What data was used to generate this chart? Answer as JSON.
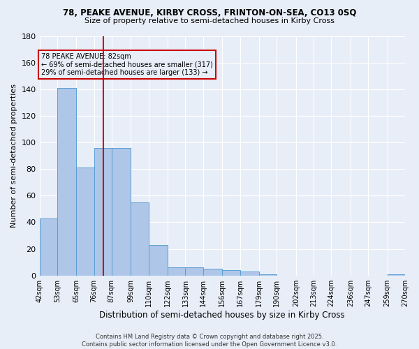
{
  "title1": "78, PEAKE AVENUE, KIRBY CROSS, FRINTON-ON-SEA, CO13 0SQ",
  "title2": "Size of property relative to semi-detached houses in Kirby Cross",
  "xlabel": "Distribution of semi-detached houses by size in Kirby Cross",
  "ylabel": "Number of semi-detached properties",
  "bar_values": [
    43,
    141,
    81,
    96,
    96,
    55,
    23,
    6,
    6,
    5,
    4,
    3,
    1,
    0,
    0,
    0,
    0,
    0,
    0,
    1
  ],
  "bin_labels": [
    "42sqm",
    "53sqm",
    "65sqm",
    "76sqm",
    "87sqm",
    "99sqm",
    "110sqm",
    "122sqm",
    "133sqm",
    "144sqm",
    "156sqm",
    "167sqm",
    "179sqm",
    "190sqm",
    "202sqm",
    "213sqm",
    "224sqm",
    "236sqm",
    "247sqm",
    "259sqm",
    "270sqm"
  ],
  "bar_color": "#aec6e8",
  "bar_edge_color": "#5a9fd4",
  "vline_x": 82,
  "vline_color": "#cc0000",
  "annotation_title": "78 PEAKE AVENUE: 82sqm",
  "annotation_line1": "← 69% of semi-detached houses are smaller (317)",
  "annotation_line2": "29% of semi-detached houses are larger (133) →",
  "annotation_box_color": "#cc0000",
  "ylim": [
    0,
    180
  ],
  "yticks": [
    0,
    20,
    40,
    60,
    80,
    100,
    120,
    140,
    160,
    180
  ],
  "bin_edges": [
    42,
    53,
    65,
    76,
    87,
    99,
    110,
    122,
    133,
    144,
    156,
    167,
    179,
    190,
    202,
    213,
    224,
    236,
    247,
    259,
    270
  ],
  "footnote1": "Contains HM Land Registry data © Crown copyright and database right 2025.",
  "footnote2": "Contains public sector information licensed under the Open Government Licence v3.0.",
  "background_color": "#e8eef8"
}
